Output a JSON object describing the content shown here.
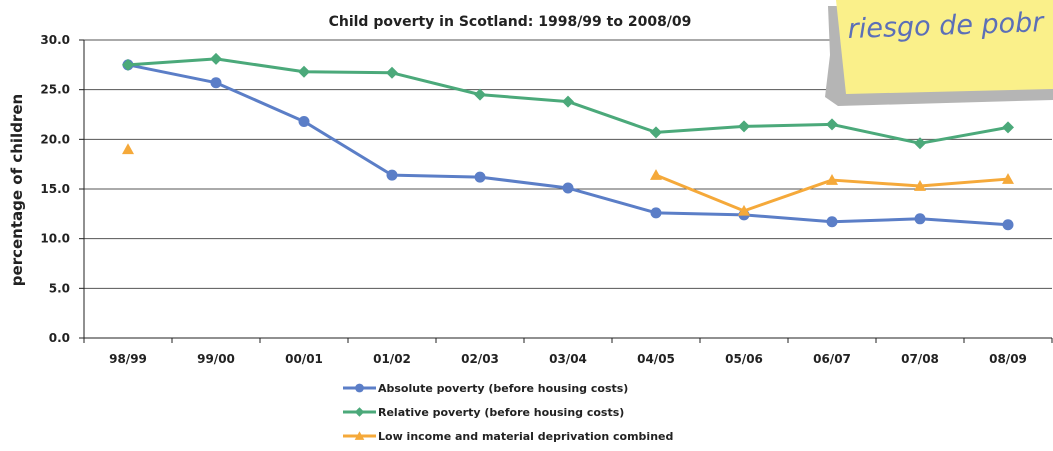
{
  "chart_data": {
    "type": "line",
    "title": "Child poverty in Scotland: 1998/99 to 2008/09",
    "xlabel": "",
    "ylabel": "percentage of children",
    "categories": [
      "98/99",
      "99/00",
      "00/01",
      "01/02",
      "02/03",
      "03/04",
      "04/05",
      "05/06",
      "06/07",
      "07/08",
      "08/09"
    ],
    "ylim": [
      0,
      30
    ],
    "yticks": [
      "0.0",
      "5.0",
      "10.0",
      "15.0",
      "20.0",
      "25.0",
      "30.0"
    ],
    "grid": true,
    "legend_position": "bottom",
    "series": [
      {
        "name": "Absolute poverty (before housing costs)",
        "color": "#5b7ec7",
        "marker": "circle",
        "values": [
          27.5,
          25.7,
          21.8,
          16.4,
          16.2,
          15.1,
          12.6,
          12.4,
          11.7,
          12.0,
          11.4
        ]
      },
      {
        "name": "Relative poverty (before housing costs)",
        "color": "#4ba97a",
        "marker": "diamond",
        "values": [
          27.5,
          28.1,
          26.8,
          26.7,
          24.5,
          23.8,
          20.7,
          21.3,
          21.5,
          19.6,
          21.2
        ]
      },
      {
        "name": "Low income and material deprivation combined",
        "color": "#f5a93a",
        "marker": "triangle",
        "values": [
          19.0,
          null,
          null,
          null,
          null,
          null,
          16.4,
          12.8,
          15.9,
          15.3,
          16.0
        ]
      }
    ]
  },
  "sticky_note": {
    "text": "riesgo de pobr",
    "color": "#faf08a"
  }
}
